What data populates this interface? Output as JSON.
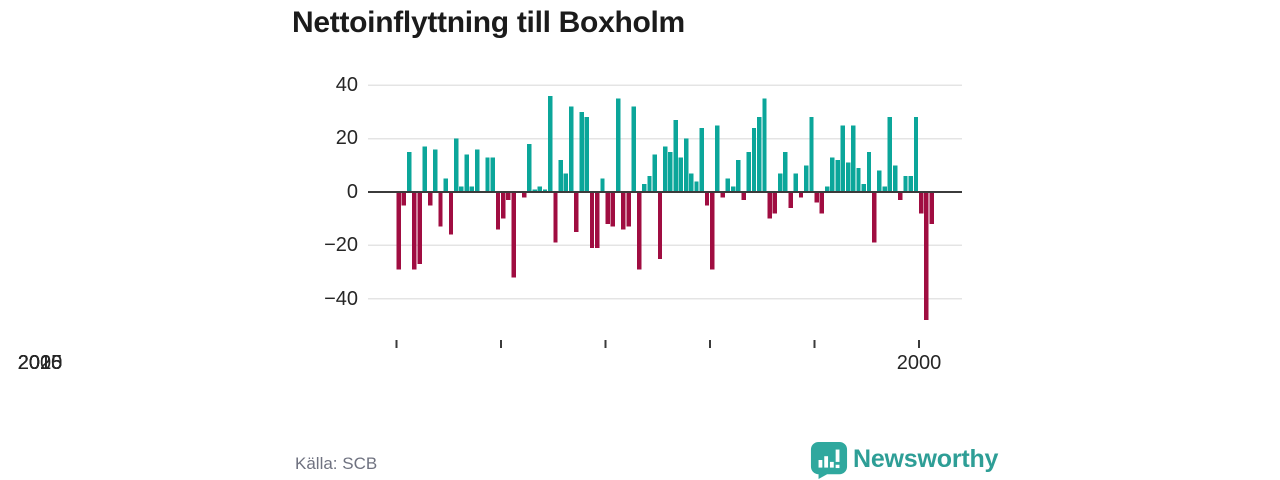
{
  "title": "Nettoinflyttning till Boxholm",
  "source": "Källa: SCB",
  "brand": {
    "name": "Newsworthy",
    "color": "#2FA89E"
  },
  "colors": {
    "positive_bar": "#0BA69A",
    "negative_bar": "#A00D41",
    "gridline": "#E4E4E4",
    "zero_line": "#3B3B3B",
    "tick_mark": "#3B3B3B",
    "title_text": "#1B1B1B",
    "axis_text": "#262626",
    "source_text": "#6F7280"
  },
  "chart_data": {
    "type": "bar",
    "title": "Nettoinflyttning till Boxholm",
    "description": "Quarterly net migration, positive bars teal, negative bars crimson",
    "x_tick_labels": [
      "2000",
      "2005",
      "2010",
      "2015",
      "2020",
      "2025"
    ],
    "y_tick_labels": [
      "40",
      "20",
      "0",
      "−20",
      "−40"
    ],
    "y_ticks": [
      40,
      20,
      0,
      -20,
      -40
    ],
    "ylim": [
      -52,
      42
    ],
    "grid": "horizontal",
    "legend": "none",
    "start_quarter": "2000Q1",
    "end_quarter": "2025Q3",
    "by_year": [
      {
        "year": 2000,
        "q": [
          -29,
          -5,
          15,
          -29
        ]
      },
      {
        "year": 2001,
        "q": [
          -27,
          17,
          -5,
          16
        ]
      },
      {
        "year": 2002,
        "q": [
          -13,
          5,
          -16,
          20
        ]
      },
      {
        "year": 2003,
        "q": [
          2,
          14,
          2,
          16
        ]
      },
      {
        "year": 2004,
        "q": [
          0,
          13,
          13,
          -14
        ]
      },
      {
        "year": 2005,
        "q": [
          -10,
          -3,
          -32,
          0
        ]
      },
      {
        "year": 2006,
        "q": [
          -2,
          18,
          1,
          2
        ]
      },
      {
        "year": 2007,
        "q": [
          1,
          36,
          -19,
          12
        ]
      },
      {
        "year": 2008,
        "q": [
          7,
          32,
          -15,
          30
        ]
      },
      {
        "year": 2009,
        "q": [
          28,
          -21,
          -21,
          5
        ]
      },
      {
        "year": 2010,
        "q": [
          -12,
          -13,
          35,
          -14
        ]
      },
      {
        "year": 2011,
        "q": [
          -13,
          32,
          -29,
          3
        ]
      },
      {
        "year": 2012,
        "q": [
          6,
          14,
          -25,
          17
        ]
      },
      {
        "year": 2013,
        "q": [
          15,
          27,
          13,
          20
        ]
      },
      {
        "year": 2014,
        "q": [
          7,
          4,
          24,
          -5
        ]
      },
      {
        "year": 2015,
        "q": [
          -29,
          25,
          -2,
          5
        ]
      },
      {
        "year": 2016,
        "q": [
          2,
          12,
          -3,
          15
        ]
      },
      {
        "year": 2017,
        "q": [
          24,
          28,
          35,
          -10
        ]
      },
      {
        "year": 2018,
        "q": [
          -8,
          7,
          15,
          -6
        ]
      },
      {
        "year": 2019,
        "q": [
          7,
          -2,
          10,
          28
        ]
      },
      {
        "year": 2020,
        "q": [
          -4,
          -8,
          2,
          13
        ]
      },
      {
        "year": 2021,
        "q": [
          12,
          25,
          11,
          25
        ]
      },
      {
        "year": 2022,
        "q": [
          9,
          3,
          15,
          -19
        ]
      },
      {
        "year": 2023,
        "q": [
          8,
          2,
          28,
          10
        ]
      },
      {
        "year": 2024,
        "q": [
          -3,
          6,
          6,
          28
        ]
      },
      {
        "year": 2025,
        "q": [
          -8,
          -48,
          -12
        ]
      }
    ]
  }
}
